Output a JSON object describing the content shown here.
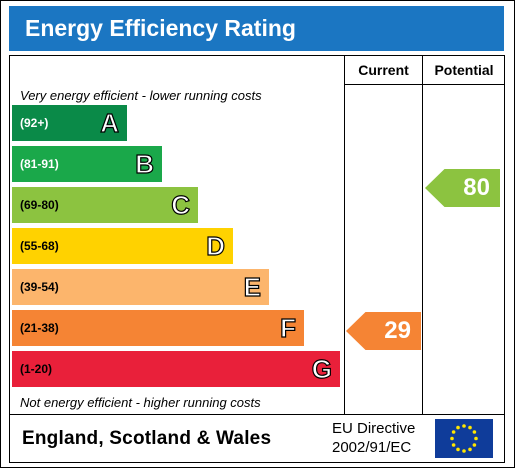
{
  "title": "Energy Efficiency Rating",
  "columns": {
    "current": "Current",
    "potential": "Potential"
  },
  "notes": {
    "top": "Very energy efficient - lower running costs",
    "bottom": "Not energy efficient - higher running costs"
  },
  "bands": [
    {
      "range": "(92+)",
      "letter": "A",
      "color": "#0a8a48",
      "range_color": "white"
    },
    {
      "range": "(81-91)",
      "letter": "B",
      "color": "#1aa84a",
      "range_color": "white"
    },
    {
      "range": "(69-80)",
      "letter": "C",
      "color": "#8cc340",
      "range_color": "black"
    },
    {
      "range": "(55-68)",
      "letter": "D",
      "color": "#ffd200",
      "range_color": "black"
    },
    {
      "range": "(39-54)",
      "letter": "E",
      "color": "#fcb56c",
      "range_color": "black"
    },
    {
      "range": "(21-38)",
      "letter": "F",
      "color": "#f58434",
      "range_color": "black"
    },
    {
      "range": "(1-20)",
      "letter": "G",
      "color": "#e9203a",
      "range_color": "black"
    }
  ],
  "current": {
    "value": "29",
    "band": "F",
    "color": "#f58434"
  },
  "potential": {
    "value": "80",
    "band": "C",
    "color": "#8cc340"
  },
  "footer": {
    "country": "England, Scotland & Wales",
    "directive_line1": "EU Directive",
    "directive_line2": "2002/91/EC",
    "flag_icon": "eu-flag-icon"
  }
}
